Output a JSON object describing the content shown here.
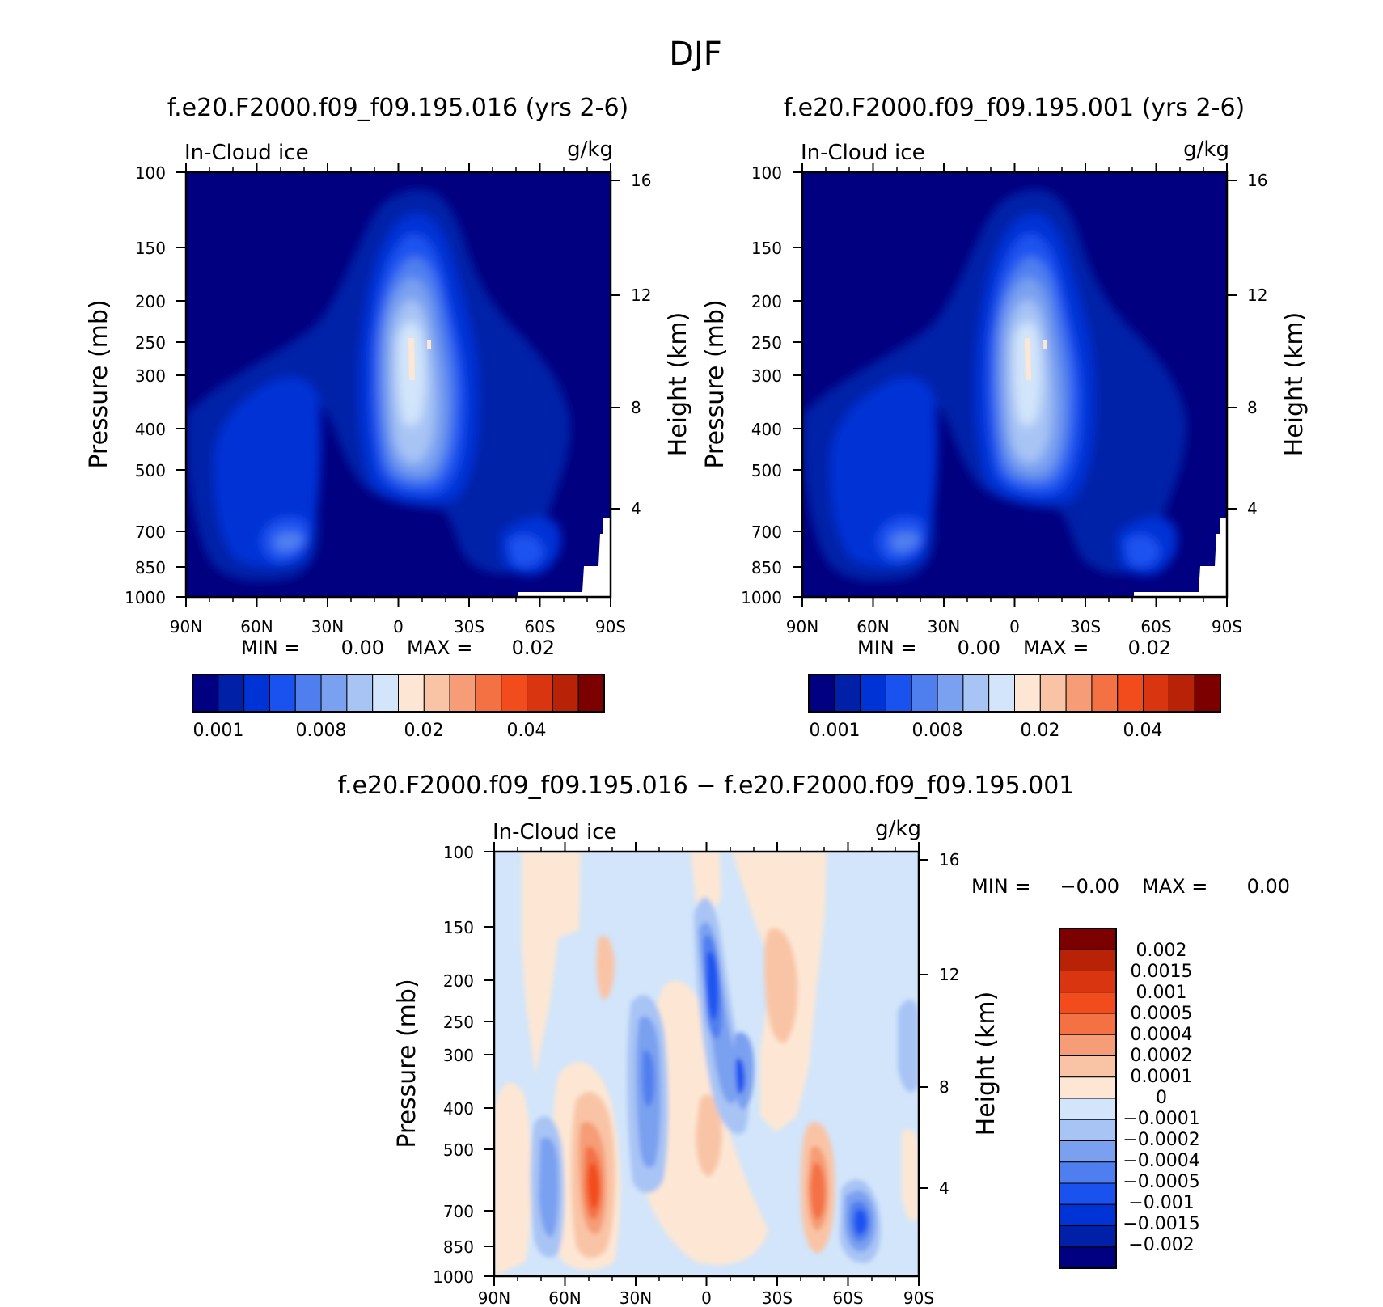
{
  "title": "DJF",
  "chart_data": [
    {
      "type": "heatmap",
      "title": "f.e20.F2000.f09_f09.195.016 (yrs 2-6)",
      "variable": "In-Cloud ice",
      "units": "g/kg",
      "ylabel": "Pressure (mb)",
      "ylabel_right": "Height (km)",
      "x_ticks": [
        "90N",
        "60N",
        "30N",
        "0",
        "30S",
        "60S",
        "90S"
      ],
      "y_ticks": [
        100,
        150,
        200,
        250,
        300,
        400,
        500,
        700,
        850,
        1000
      ],
      "y_right_ticks": [
        16,
        12,
        8,
        4
      ],
      "ylim": [
        1000,
        100
      ],
      "min_label": "MIN =",
      "min_value": "0.00",
      "max_label": "MAX =",
      "max_value": "0.02",
      "colorbar_labels": [
        "0.001",
        "0.008",
        "0.02",
        "0.04"
      ],
      "colors": [
        "#000080",
        "#0020a8",
        "#0033d6",
        "#1a52f0",
        "#4f7fef",
        "#7aa0f0",
        "#a8c4f5",
        "#d2e5fa",
        "#fde7d4",
        "#f9c4a6",
        "#f69c76",
        "#f47144",
        "#f24b1c",
        "#d93510",
        "#b82206",
        "#7d0000"
      ]
    },
    {
      "type": "heatmap",
      "title": "f.e20.F2000.f09_f09.195.001 (yrs 2-6)",
      "variable": "In-Cloud ice",
      "units": "g/kg",
      "ylabel": "Pressure (mb)",
      "ylabel_right": "Height (km)",
      "x_ticks": [
        "90N",
        "60N",
        "30N",
        "0",
        "30S",
        "60S",
        "90S"
      ],
      "y_ticks": [
        100,
        150,
        200,
        250,
        300,
        400,
        500,
        700,
        850,
        1000
      ],
      "y_right_ticks": [
        16,
        12,
        8,
        4
      ],
      "ylim": [
        1000,
        100
      ],
      "min_label": "MIN =",
      "min_value": "0.00",
      "max_label": "MAX =",
      "max_value": "0.02",
      "colorbar_labels": [
        "0.001",
        "0.008",
        "0.02",
        "0.04"
      ],
      "colors": [
        "#000080",
        "#0020a8",
        "#0033d6",
        "#1a52f0",
        "#4f7fef",
        "#7aa0f0",
        "#a8c4f5",
        "#d2e5fa",
        "#fde7d4",
        "#f9c4a6",
        "#f69c76",
        "#f47144",
        "#f24b1c",
        "#d93510",
        "#b82206",
        "#7d0000"
      ]
    },
    {
      "type": "heatmap",
      "title": "f.e20.F2000.f09_f09.195.016 − f.e20.F2000.f09_f09.195.001",
      "variable": "In-Cloud ice",
      "units": "g/kg",
      "ylabel": "Pressure (mb)",
      "ylabel_right": "Height (km)",
      "x_ticks": [
        "90N",
        "60N",
        "30N",
        "0",
        "30S",
        "60S",
        "90S"
      ],
      "y_ticks": [
        100,
        150,
        200,
        250,
        300,
        400,
        500,
        700,
        850,
        1000
      ],
      "y_right_ticks": [
        16,
        12,
        8,
        4
      ],
      "ylim": [
        1000,
        100
      ],
      "min_label": "MIN =",
      "min_value": "−0.00",
      "max_label": "MAX =",
      "max_value": "0.00",
      "colorbar_labels": [
        "0.002",
        "0.0015",
        "0.001",
        "0.0005",
        "0.0004",
        "0.0002",
        "0.0001",
        "0",
        "−0.0001",
        "−0.0002",
        "−0.0004",
        "−0.0005",
        "−0.001",
        "−0.0015",
        "−0.002"
      ],
      "colors": [
        "#7d0000",
        "#b82206",
        "#d93510",
        "#f24b1c",
        "#f47144",
        "#f69c76",
        "#f9c4a6",
        "#fde7d4",
        "#d2e5fa",
        "#a8c4f5",
        "#7aa0f0",
        "#4f7fef",
        "#1a52f0",
        "#0033d6",
        "#0020a8",
        "#000080"
      ]
    }
  ]
}
